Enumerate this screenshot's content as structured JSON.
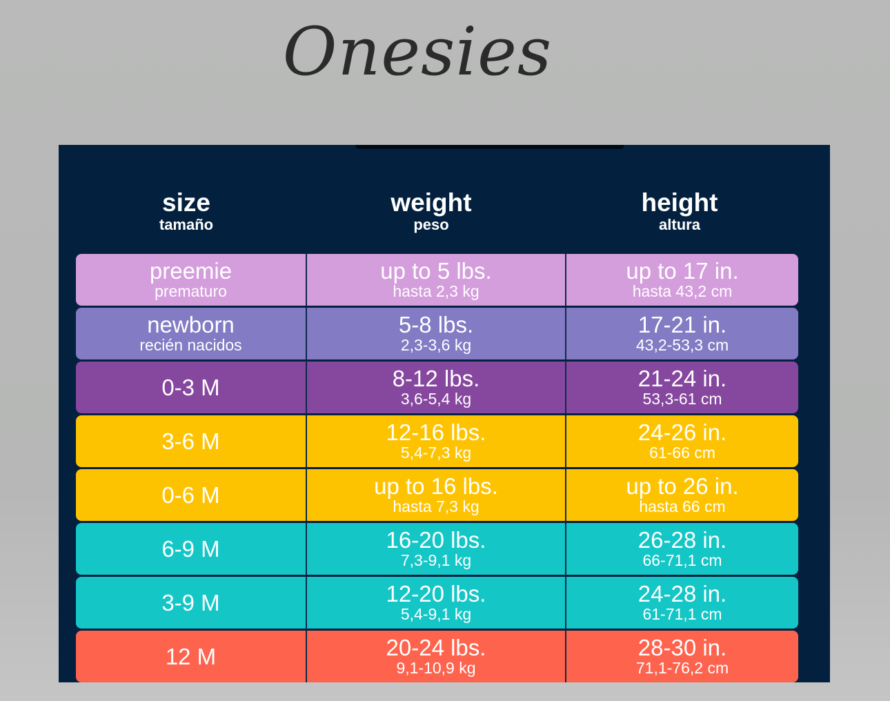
{
  "title": "Onesies",
  "header": {
    "size": {
      "main": "size",
      "sub": "tamaño"
    },
    "weight": {
      "main": "weight",
      "sub": "peso"
    },
    "height": {
      "main": "height",
      "sub": "altura"
    }
  },
  "rows": [
    {
      "color": "#d49ddc",
      "size": {
        "main": "preemie",
        "sub": "prematuro"
      },
      "weight": {
        "main": "up to 5 lbs.",
        "sub": "hasta 2,3 kg"
      },
      "height": {
        "main": "up to 17 in.",
        "sub": "hasta 43,2 cm"
      }
    },
    {
      "color": "#837bc3",
      "size": {
        "main": "newborn",
        "sub": "recién nacidos"
      },
      "weight": {
        "main": "5-8 lbs.",
        "sub": "2,3-3,6 kg"
      },
      "height": {
        "main": "17-21 in.",
        "sub": "43,2-53,3 cm"
      }
    },
    {
      "color": "#86479f",
      "size": {
        "main": "0-3 M",
        "sub": ""
      },
      "weight": {
        "main": "8-12 lbs.",
        "sub": "3,6-5,4 kg"
      },
      "height": {
        "main": "21-24 in.",
        "sub": "53,3-61 cm"
      }
    },
    {
      "color": "#fec300",
      "size": {
        "main": "3-6 M",
        "sub": ""
      },
      "weight": {
        "main": "12-16 lbs.",
        "sub": "5,4-7,3 kg"
      },
      "height": {
        "main": "24-26 in.",
        "sub": "61-66 cm"
      }
    },
    {
      "color": "#fec300",
      "size": {
        "main": "0-6 M",
        "sub": ""
      },
      "weight": {
        "main": "up to 16 lbs.",
        "sub": "hasta 7,3 kg"
      },
      "height": {
        "main": "up to 26 in.",
        "sub": "hasta 66 cm"
      }
    },
    {
      "color": "#15c6c6",
      "size": {
        "main": "6-9 M",
        "sub": ""
      },
      "weight": {
        "main": "16-20 lbs.",
        "sub": "7,3-9,1 kg"
      },
      "height": {
        "main": "26-28 in.",
        "sub": "66-71,1 cm"
      }
    },
    {
      "color": "#15c6c6",
      "size": {
        "main": "3-9 M",
        "sub": ""
      },
      "weight": {
        "main": "12-20 lbs.",
        "sub": "5,4-9,1 kg"
      },
      "height": {
        "main": "24-28 in.",
        "sub": "61-71,1 cm"
      }
    },
    {
      "color": "#fe634e",
      "size": {
        "main": "12 M",
        "sub": ""
      },
      "weight": {
        "main": "20-24 lbs.",
        "sub": "9,1-10,9 kg"
      },
      "height": {
        "main": "28-30 in.",
        "sub": "71,1-76,2 cm"
      }
    }
  ]
}
